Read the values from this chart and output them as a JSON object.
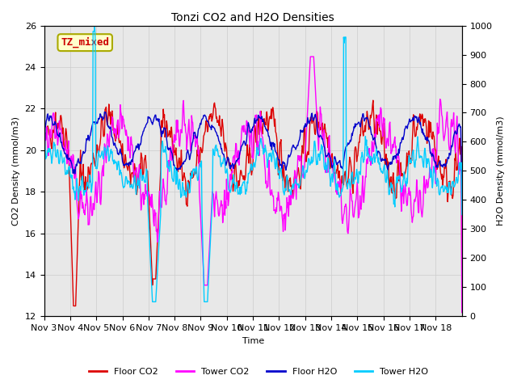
{
  "title": "Tonzi CO2 and H2O Densities",
  "xlabel": "Time",
  "ylabel_left": "CO2 Density (mmol/m3)",
  "ylabel_right": "H2O Density (mmol/m3)",
  "ylim_left": [
    12,
    26
  ],
  "ylim_right": [
    0,
    1000
  ],
  "annotation_text": "TZ_mixed",
  "annotation_color": "#cc0000",
  "annotation_bg": "#ffffcc",
  "annotation_border": "#aaaa00",
  "colors": {
    "floor_co2": "#dd0000",
    "tower_co2": "#ff00ff",
    "floor_h2o": "#0000cc",
    "tower_h2o": "#00ccff"
  },
  "legend_labels": [
    "Floor CO2",
    "Tower CO2",
    "Floor H2O",
    "Tower H2O"
  ],
  "xtick_labels": [
    "Nov 3",
    "Nov 4",
    "Nov 5",
    "Nov 6",
    "Nov 7",
    "Nov 8",
    "Nov 9",
    "Nov 10",
    "Nov 11",
    "Nov 12",
    "Nov 13",
    "Nov 14",
    "Nov 15",
    "Nov 16",
    "Nov 17",
    "Nov 18"
  ],
  "grid_color": "#cccccc",
  "bg_color": "#e8e8e8"
}
